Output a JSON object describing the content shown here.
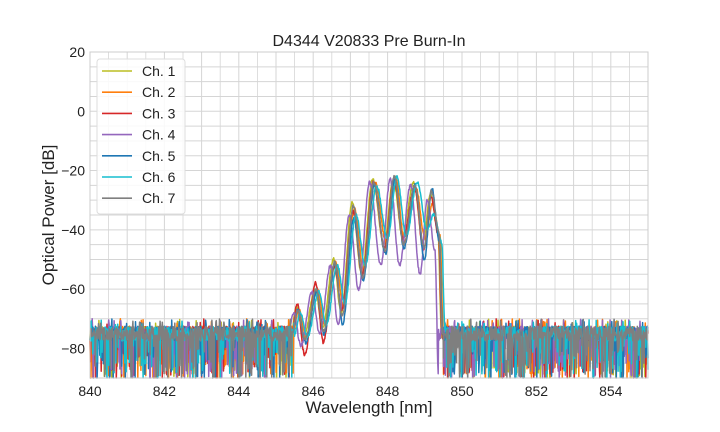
{
  "chart_data": {
    "type": "line",
    "title": "D4344 V20833 Pre Burn-In",
    "xlabel": "Wavelength [nm]",
    "ylabel": "Optical Power [dB]",
    "xlim": [
      840,
      855
    ],
    "ylim": [
      -90,
      20
    ],
    "xticks": [
      "840",
      "842",
      "844",
      "846",
      "848",
      "850",
      "852",
      "854"
    ],
    "xtick_values": [
      840,
      842,
      844,
      846,
      848,
      850,
      852,
      854
    ],
    "yticks": [
      "20",
      "0",
      "−20",
      "−40",
      "−60",
      "−80"
    ],
    "ytick_values": [
      20,
      0,
      -20,
      -40,
      -60,
      -80
    ],
    "grid": true,
    "minor_grid": true,
    "legend_position": "top-left",
    "noise_floor_db": -75,
    "band_edges_nm": [
      845.4,
      849.45
    ],
    "series": [
      {
        "name": "Ch. 1",
        "color": "#bcbd22",
        "x": [
          845.4,
          845.55,
          845.75,
          846.05,
          846.25,
          846.55,
          846.75,
          847.05,
          847.3,
          847.6,
          847.9,
          848.15,
          848.4,
          848.7,
          848.95,
          849.15,
          849.35,
          849.45
        ],
        "y": [
          -75,
          -66,
          -76,
          -60,
          -73,
          -50,
          -68,
          -31,
          -55,
          -23,
          -45,
          -23,
          -42,
          -24,
          -44,
          -28,
          -40,
          -75
        ]
      },
      {
        "name": "Ch. 2",
        "color": "#ff7f0e",
        "x": [
          845.46,
          845.61,
          845.81,
          846.11,
          846.31,
          846.61,
          846.81,
          847.11,
          847.36,
          847.66,
          847.96,
          848.21,
          848.46,
          848.76,
          849.01,
          849.21,
          849.41,
          849.5
        ],
        "y": [
          -75,
          -67,
          -76,
          -60,
          -72,
          -51,
          -66,
          -33,
          -54,
          -24,
          -44,
          -22,
          -44,
          -26,
          -43,
          -31,
          -42,
          -75
        ]
      },
      {
        "name": "Ch. 3",
        "color": "#d62728",
        "x": [
          845.42,
          845.57,
          845.77,
          846.07,
          846.27,
          846.57,
          846.77,
          847.07,
          847.32,
          847.62,
          847.92,
          848.17,
          848.42,
          848.72,
          848.97,
          849.17,
          849.37,
          849.46
        ],
        "y": [
          -75,
          -65,
          -82,
          -58,
          -78,
          -52,
          -67,
          -34,
          -55,
          -24,
          -46,
          -23,
          -43,
          -26,
          -47,
          -29,
          -42,
          -75
        ]
      },
      {
        "name": "Ch. 4",
        "color": "#9467bd",
        "x": [
          845.32,
          845.47,
          845.67,
          845.97,
          846.17,
          846.47,
          846.67,
          846.97,
          847.22,
          847.52,
          847.82,
          848.07,
          848.32,
          848.62,
          848.87,
          849.07,
          849.27,
          849.37
        ],
        "y": [
          -75,
          -68,
          -79,
          -61,
          -75,
          -52,
          -72,
          -35,
          -60,
          -24,
          -52,
          -23,
          -52,
          -25,
          -55,
          -30,
          -47,
          -90
        ]
      },
      {
        "name": "Ch. 5",
        "color": "#1f77b4",
        "x": [
          845.44,
          845.59,
          845.79,
          846.09,
          846.29,
          846.59,
          846.79,
          847.09,
          847.34,
          847.64,
          847.94,
          848.19,
          848.44,
          848.74,
          848.99,
          849.19,
          849.39,
          849.48
        ],
        "y": [
          -75,
          -67,
          -78,
          -61,
          -75,
          -51,
          -72,
          -36,
          -57,
          -25,
          -48,
          -23,
          -46,
          -25,
          -50,
          -26,
          -44,
          -75
        ]
      },
      {
        "name": "Ch. 6",
        "color": "#17becf",
        "x": [
          845.5,
          845.65,
          845.85,
          846.15,
          846.35,
          846.65,
          846.85,
          847.15,
          847.4,
          847.7,
          848.0,
          848.25,
          848.5,
          848.8,
          849.05,
          849.25,
          849.45,
          849.55
        ],
        "y": [
          -75,
          -68,
          -76,
          -61,
          -72,
          -52,
          -65,
          -35,
          -52,
          -25,
          -43,
          -22,
          -42,
          -24,
          -40,
          -35,
          -44,
          -75
        ]
      },
      {
        "name": "Ch. 7",
        "color": "#7f7f7f",
        "x": [
          845.43,
          845.58,
          845.78,
          846.08,
          846.28,
          846.58,
          846.78,
          847.08,
          847.33,
          847.63,
          847.93,
          848.18,
          848.43,
          848.73,
          848.98,
          849.18,
          849.38,
          849.47
        ],
        "y": [
          -75,
          -67,
          -77,
          -60,
          -74,
          -51,
          -69,
          -32,
          -56,
          -24,
          -47,
          -22,
          -45,
          -25,
          -46,
          -27,
          -41,
          -75
        ]
      }
    ]
  }
}
